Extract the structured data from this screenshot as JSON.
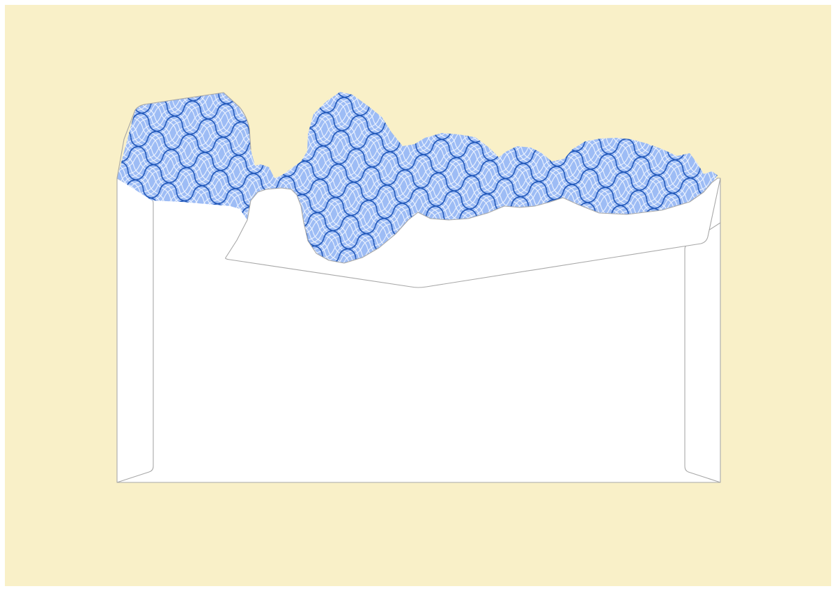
{
  "scene": {
    "subject": "torn-open-envelope-back",
    "colors": {
      "page_background": "#ffffff",
      "mat_background": "#f9f0c8",
      "envelope_paper": "#ffffff",
      "envelope_outline": "#a8a8a8",
      "security_tint_base": "#9dbcf5",
      "security_tint_line_dark": "#1f56b8",
      "security_tint_line_light": "#ffffff"
    },
    "pattern": "wavy-crosshatch-security-tint",
    "icons": [
      "envelope-icon"
    ]
  }
}
